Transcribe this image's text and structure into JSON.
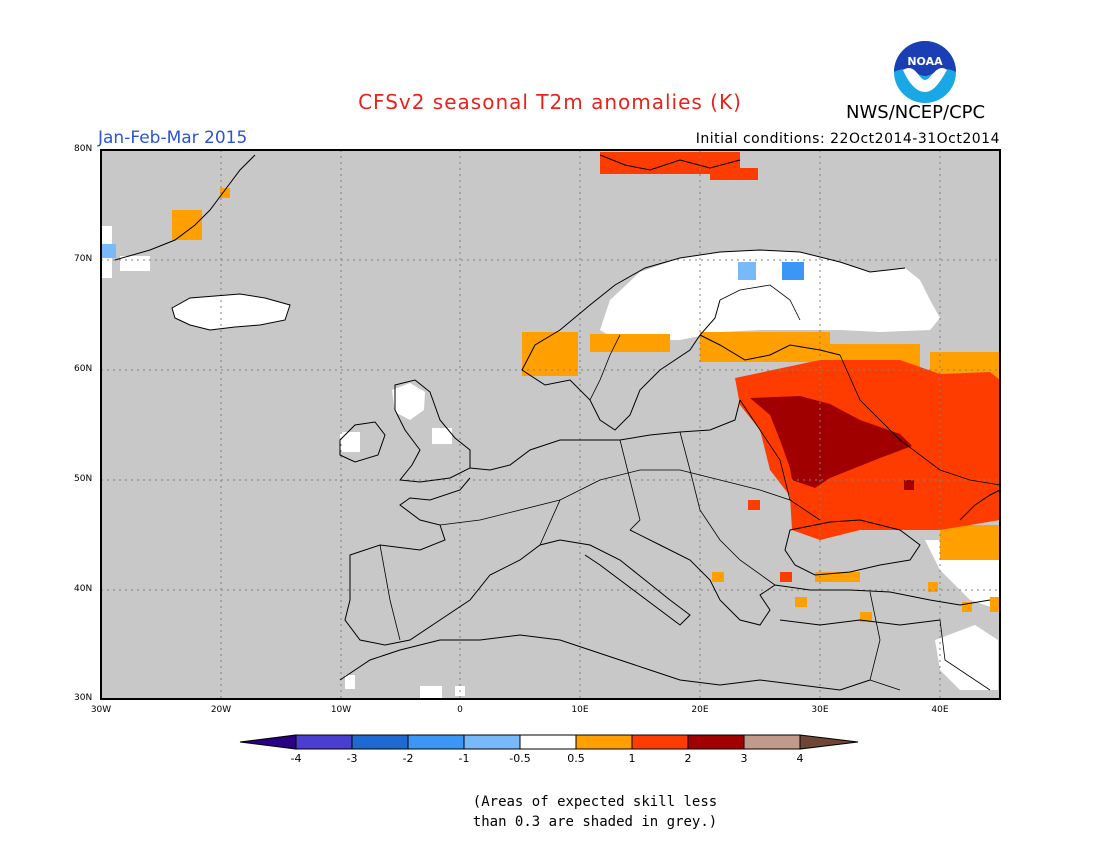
{
  "header": {
    "title": "CFSv2 seasonal T2m anomalies (K)",
    "season": "Jan-Feb-Mar 2015",
    "initial_conditions": "Initial conditions: 22Oct2014-31Oct2014",
    "org": "NWS/NCEP/CPC",
    "logo_text": "NOAA"
  },
  "colors": {
    "title": "#e8231e",
    "season": "#2c53d6",
    "land_grey": "#c8c8c8",
    "neutral": "#ffffff",
    "pos_05_1": "#ffa000",
    "pos_1_2": "#ff3c00",
    "pos_2_3": "#a00000",
    "neg_05_1": "#78b9fa",
    "neg_1_2": "#3c96f5"
  },
  "map": {
    "lon_range": [
      -30,
      45
    ],
    "lat_range": [
      30,
      80
    ],
    "lat_labels": [
      "80N",
      "70N",
      "60N",
      "50N",
      "40N",
      "30N"
    ],
    "lon_labels": [
      "30W",
      "20W",
      "10W",
      "0",
      "10E",
      "20E",
      "30E",
      "40E"
    ]
  },
  "colorbar": {
    "colors": [
      "#2a0082",
      "#4a3ed0",
      "#1e6ad2",
      "#3c96f5",
      "#78b9fa",
      "#ffffff",
      "#ffa000",
      "#ff3c00",
      "#a00000",
      "#c09a8a",
      "#6e4636"
    ],
    "labels": [
      "-4",
      "-3",
      "-2",
      "-1",
      "-0.5",
      "0.5",
      "1",
      "2",
      "3",
      "4"
    ]
  },
  "note": {
    "line1": "(Areas of expected skill less",
    "line2": "than 0.3 are shaded in grey.)"
  }
}
